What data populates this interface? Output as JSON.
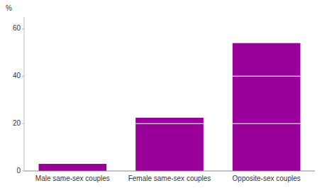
{
  "chart_data": {
    "type": "bar",
    "categories": [
      "Male same-sex couples",
      "Female same-sex couples",
      "Opposite-sex couples"
    ],
    "values": [
      3.0,
      22.5,
      54.0
    ],
    "dividers": [
      [],
      [
        20.0
      ],
      [
        20.0,
        40.0
      ]
    ],
    "color": "#990099",
    "y_label": "%",
    "ylim": [
      0,
      65
    ],
    "yticks": [
      0,
      20,
      40,
      60
    ],
    "grid": false
  }
}
